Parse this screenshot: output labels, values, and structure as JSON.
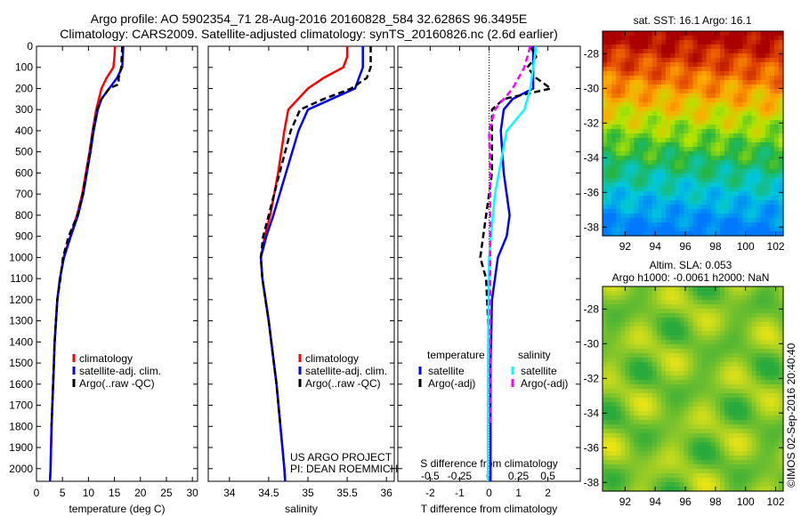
{
  "title_line1": "Argo profile: AO 5902354_71 28-Aug-2016 20160828_584 32.6286S 96.3495E",
  "title_line2": "Climatology: CARS2009. Satellite-adjusted climatology: synTS_20160826.nc (2.6d earlier)",
  "credit": "US ARGO PROJECT",
  "pi": "PI: DEAN ROEMMICH",
  "side_stamp": "©IMOS 02-Sep-2016 20:40:40",
  "colors": {
    "climatology": "#ff0000",
    "satellite": "#0000ff",
    "argo": "#000000",
    "sal_sat": "#00ffff",
    "sal_argo": "#ff00ff"
  },
  "chart_data": [
    {
      "type": "line",
      "id": "temp",
      "xlabel": "temperature (deg C)",
      "xlim": [
        0,
        31
      ],
      "ylim": [
        0,
        2060
      ],
      "yreversed": true,
      "xticks": [
        0,
        5,
        10,
        15,
        20,
        25,
        30
      ],
      "yticks": [
        0,
        100,
        200,
        300,
        400,
        500,
        600,
        700,
        800,
        900,
        1000,
        1100,
        1200,
        1300,
        1400,
        1500,
        1600,
        1700,
        1800,
        1900,
        2000
      ],
      "legend": [
        "climatology",
        "satellite-adj. clim.",
        "Argo(..raw -QC)"
      ],
      "series": [
        {
          "name": "climatology",
          "color": "#ff0000",
          "dash": false,
          "depth": [
            0,
            50,
            100,
            150,
            200,
            300,
            400,
            500,
            600,
            700,
            800,
            900,
            1000,
            1100,
            1200,
            1400,
            1600,
            1800,
            2000,
            2060
          ],
          "values": [
            15.1,
            15,
            14.8,
            13.5,
            12.5,
            11.5,
            10.8,
            10.2,
            9.5,
            8.8,
            7.8,
            6.5,
            5.2,
            4.5,
            4,
            3.5,
            3.2,
            2.9,
            2.7,
            2.6
          ]
        },
        {
          "name": "satellite-adj. clim.",
          "color": "#0000ff",
          "dash": false,
          "depth": [
            0,
            50,
            100,
            150,
            200,
            250,
            300,
            400,
            500,
            600,
            700,
            800,
            900,
            1000,
            1100,
            1200,
            1400,
            1600,
            1800,
            2000,
            2060
          ],
          "values": [
            16.7,
            16.6,
            16.5,
            15.5,
            14,
            12.5,
            11.8,
            11,
            10.4,
            9.7,
            9,
            8,
            6.6,
            5.3,
            4.5,
            4,
            3.5,
            3.2,
            2.9,
            2.7,
            2.6
          ]
        },
        {
          "name": "Argo(..raw -QC)",
          "color": "#000000",
          "dash": true,
          "depth": [
            0,
            50,
            100,
            150,
            180,
            200,
            250,
            300,
            400,
            500,
            600,
            700,
            800,
            900,
            1000,
            1100,
            1200,
            1400,
            1600,
            1800
          ],
          "values": [
            16.5,
            16.4,
            16.3,
            15.8,
            15.8,
            14,
            12.5,
            11.7,
            10.9,
            10.3,
            9.6,
            8.9,
            7.9,
            6.2,
            5.1,
            4.6,
            4,
            3.5,
            3.2,
            2.9
          ]
        }
      ]
    },
    {
      "type": "line",
      "id": "sal",
      "xlabel": "salinity",
      "xlim": [
        33.73,
        36.1
      ],
      "ylim": [
        0,
        2060
      ],
      "yreversed": true,
      "xticks": [
        34,
        34.5,
        35,
        35.5,
        36
      ],
      "legend": [
        "climatology",
        "satellite-adj. clim.",
        "Argo(..raw -QC)"
      ],
      "series": [
        {
          "name": "climatology",
          "color": "#ff0000",
          "dash": false,
          "depth": [
            0,
            50,
            100,
            150,
            200,
            300,
            400,
            600,
            800,
            900,
            1000,
            1100,
            1300,
            1600,
            2000,
            2060
          ],
          "values": [
            35.5,
            35.5,
            35.45,
            35.2,
            35,
            34.75,
            34.7,
            34.62,
            34.52,
            34.45,
            34.4,
            34.42,
            34.5,
            34.6,
            34.7,
            34.71
          ]
        },
        {
          "name": "satellite-adj. clim.",
          "color": "#0000ff",
          "dash": false,
          "depth": [
            0,
            100,
            200,
            250,
            300,
            400,
            600,
            800,
            900,
            1000,
            1100,
            1300,
            1600,
            2000,
            2060
          ],
          "values": [
            35.7,
            35.7,
            35.6,
            35.3,
            35,
            34.88,
            34.72,
            34.56,
            34.47,
            34.4,
            34.42,
            34.5,
            34.6,
            34.7,
            34.71
          ]
        },
        {
          "name": "Argo(..raw -QC)",
          "color": "#000000",
          "dash": true,
          "depth": [
            0,
            100,
            150,
            200,
            250,
            300,
            400,
            600,
            800,
            900,
            1000,
            1100,
            1300,
            1600,
            1800
          ],
          "values": [
            35.8,
            35.8,
            35.75,
            35.55,
            35.2,
            34.9,
            34.78,
            34.64,
            34.5,
            34.43,
            34.4,
            34.42,
            34.5,
            34.6,
            34.65
          ]
        }
      ]
    },
    {
      "type": "line",
      "id": "diff",
      "xlabel": "T difference from climatology",
      "x2label": "S difference from climatology",
      "xlim": [
        -3.1,
        3.1
      ],
      "ylim": [
        0,
        2060
      ],
      "yreversed": true,
      "xticks": [
        -2,
        -1,
        0,
        1,
        2
      ],
      "x2ticks": [
        "-0.5",
        "-0.25",
        "0",
        "0.25",
        "0.5"
      ],
      "x2values": [
        -0.5,
        -0.25,
        0,
        0.25,
        0.5
      ],
      "legend_titles": [
        "temperature",
        "salinity"
      ],
      "legend": [
        "satellite",
        "Argo(-adj)",
        "satellite",
        "Argo(-adj)"
      ],
      "series": [
        {
          "name": "T satellite",
          "color": "#0000ff",
          "dash": false,
          "scale": 1,
          "depth": [
            0,
            100,
            200,
            250,
            300,
            400,
            600,
            800,
            900,
            1000,
            1200,
            1500,
            2000,
            2060
          ],
          "values": [
            1.5,
            1.5,
            1.5,
            0.8,
            0.5,
            0.4,
            0.5,
            0.7,
            0.6,
            0.3,
            0.1,
            0.05,
            0.05,
            0.05
          ]
        },
        {
          "name": "T Argo(-adj)",
          "color": "#000000",
          "dash": true,
          "scale": 1,
          "depth": [
            0,
            50,
            100,
            150,
            200,
            250,
            300,
            600,
            900,
            1000,
            1100,
            1400,
            1800
          ],
          "values": [
            1.4,
            1.6,
            1.3,
            1.6,
            2.1,
            0.5,
            0.1,
            0.1,
            -0.2,
            -0.3,
            -0.1,
            0,
            0
          ]
        },
        {
          "name": "S satellite",
          "color": "#00ffff",
          "dash": false,
          "scale": 4,
          "depth": [
            0,
            200,
            300,
            400,
            700,
            1000,
            1500,
            2000,
            2060
          ],
          "values": [
            0.4,
            0.35,
            0.3,
            0.15,
            0.05,
            0,
            -0.01,
            -0.01,
            -0.01
          ]
        },
        {
          "name": "S Argo(-adj)",
          "color": "#ff00ff",
          "dash": true,
          "scale": 4,
          "depth": [
            0,
            100,
            200,
            300,
            400,
            600,
            1000,
            1500,
            1800
          ],
          "values": [
            0.35,
            0.3,
            0.2,
            0.05,
            0,
            0.01,
            0.01,
            0.01,
            0.01
          ]
        }
      ]
    },
    {
      "type": "heatmap",
      "id": "sst",
      "title": "sat. SST: 16.1 Argo: 16.1",
      "xticks": [
        92,
        94,
        96,
        98,
        100,
        102
      ],
      "yticks": [
        -28,
        -30,
        -32,
        -34,
        -36,
        -38
      ],
      "xlim": [
        90.5,
        102.5
      ],
      "ylim": [
        -38.5,
        -26.7
      ]
    },
    {
      "type": "heatmap",
      "id": "sla",
      "title_line1": "Altim. SLA: 0.053",
      "title_line2": "Argo h1000: -0.0061 h2000: NaN",
      "xticks": [
        92,
        94,
        96,
        98,
        100,
        102
      ],
      "yticks": [
        -28,
        -30,
        -32,
        -34,
        -36,
        -38
      ],
      "xlim": [
        90.5,
        102.5
      ],
      "ylim": [
        -38.5,
        -26.7
      ]
    }
  ]
}
